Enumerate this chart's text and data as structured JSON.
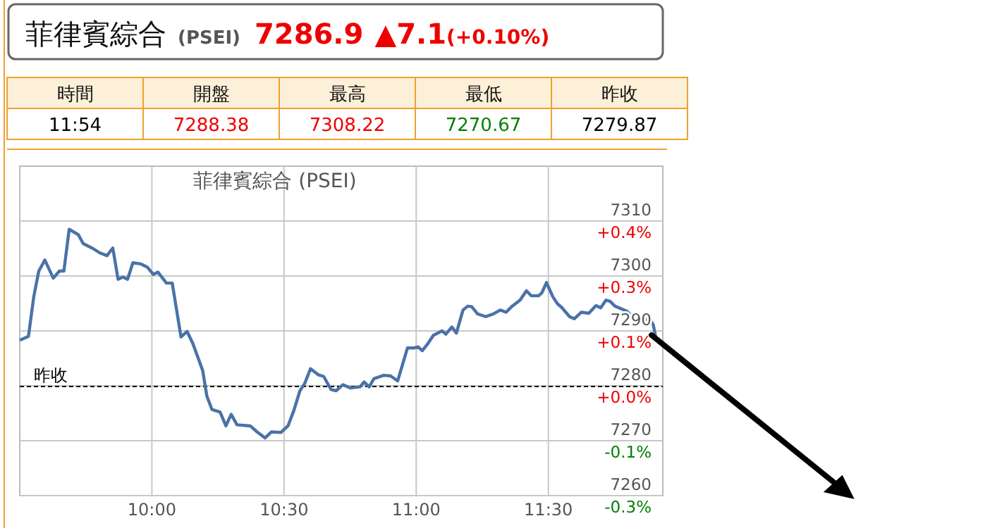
{
  "chart_data": [
    {
      "type": "other",
      "title": "菲律賓綜合",
      "subtitle": "(PSEI)",
      "annotations": [
        "7286.9",
        "▲7.1",
        "(+0.10%)"
      ],
      "colors": [
        "#ee0000",
        "#ee0000",
        "#ee0000"
      ]
    },
    {
      "type": "other",
      "annotations": [
        "時間",
        "開盤",
        "最高",
        "最低",
        "昨收",
        "11:54",
        "7288.38",
        "7308.22",
        "7270.67",
        "7279.87"
      ],
      "colors": [
        "#111111",
        "#111111",
        "#111111",
        "#111111",
        "#111111",
        "#000000",
        "#ee0000",
        "#ee0000",
        "#008000",
        "#000000"
      ]
    },
    {
      "type": "line",
      "title": "菲律賓綜合 (PSEI)",
      "xlim": [
        9.5,
        11.933
      ],
      "ylim": [
        7260,
        7320
      ],
      "y2lim": [
        -0.273,
        0.551
      ],
      "xticks": [
        {
          "value": 10,
          "label": "10:00"
        },
        {
          "value": 10.5,
          "label": "10:30"
        },
        {
          "value": 11,
          "label": "11:00"
        },
        {
          "value": 11.5,
          "label": "11:30"
        }
      ],
      "yticks": [
        7260,
        7270,
        7280,
        7290,
        7300,
        7310
      ],
      "y2ticks": [
        {
          "value": -0.273,
          "label": "-0.3%"
        },
        {
          "value": -0.136,
          "label": "-0.1%"
        },
        {
          "value": 0.002,
          "label": "+0.0%"
        },
        {
          "value": 0.139,
          "label": "+0.1%"
        },
        {
          "value": 0.277,
          "label": "+0.3%"
        },
        {
          "value": 0.414,
          "label": "+0.4%"
        }
      ],
      "grid": true,
      "line_style": "solid",
      "ref_lines": [
        {
          "axis": "y",
          "value": 7279.87,
          "label": "昨收",
          "color": "#000000",
          "line_style": "dashed"
        }
      ],
      "series": [
        {
          "color": "#4a72a8",
          "x": [
            9.505,
            9.533,
            9.553,
            9.572,
            9.595,
            9.627,
            9.65,
            9.667,
            9.687,
            9.722,
            9.74,
            9.777,
            9.803,
            9.83,
            9.852,
            9.872,
            9.89,
            9.908,
            9.928,
            9.957,
            9.983,
            10.005,
            10.023,
            10.055,
            10.077,
            10.11,
            10.133,
            10.155,
            10.192,
            10.208,
            10.227,
            10.258,
            10.28,
            10.3,
            10.322,
            10.372,
            10.398,
            10.428,
            10.452,
            10.488,
            10.515,
            10.537,
            10.56,
            10.578,
            10.6,
            10.63,
            10.65,
            10.678,
            10.697,
            10.723,
            10.75,
            10.787,
            10.803,
            10.822,
            10.84,
            10.877,
            10.903,
            10.93,
            10.967,
            10.993,
            11.007,
            11.023,
            11.043,
            11.065,
            11.098,
            11.112,
            11.135,
            11.152,
            11.177,
            11.195,
            11.21,
            11.232,
            11.263,
            11.292,
            11.318,
            11.34,
            11.363,
            11.393,
            11.417,
            11.435,
            11.463,
            11.475,
            11.493,
            11.517,
            11.535,
            11.55,
            11.58,
            11.598,
            11.625,
            11.653,
            11.68,
            11.698,
            11.718,
            11.733,
            11.752,
            11.797,
            11.823,
            11.85,
            11.882,
            11.897,
            11.908
          ],
          "values": [
            7288.4,
            7289.0,
            7296.2,
            7300.9,
            7302.9,
            7299.6,
            7300.9,
            7300.9,
            7308.5,
            7307.5,
            7305.9,
            7305.0,
            7304.2,
            7303.7,
            7305.1,
            7299.4,
            7299.8,
            7299.4,
            7302.4,
            7302.2,
            7301.6,
            7300.3,
            7300.7,
            7298.7,
            7298.7,
            7288.9,
            7289.9,
            7287.7,
            7282.8,
            7278.1,
            7275.7,
            7275.2,
            7272.7,
            7274.8,
            7272.9,
            7272.7,
            7271.6,
            7270.5,
            7271.6,
            7271.5,
            7272.7,
            7275.5,
            7279.1,
            7280.4,
            7283.1,
            7282.0,
            7281.7,
            7279.3,
            7279.1,
            7280.2,
            7279.6,
            7279.8,
            7280.7,
            7279.8,
            7281.3,
            7281.9,
            7281.8,
            7280.9,
            7286.9,
            7286.9,
            7287.1,
            7286.4,
            7287.6,
            7289.2,
            7290.0,
            7289.4,
            7290.7,
            7289.6,
            7293.8,
            7294.5,
            7294.4,
            7293.1,
            7292.6,
            7293.1,
            7293.8,
            7293.4,
            7294.5,
            7295.6,
            7297.3,
            7296.4,
            7296.4,
            7296.9,
            7298.8,
            7296.2,
            7294.9,
            7294.3,
            7292.6,
            7292.2,
            7293.4,
            7293.2,
            7294.6,
            7294.2,
            7295.6,
            7295.4,
            7294.5,
            7293.6,
            7292.3,
            7291.7,
            7292.3,
            7291.1,
            7288.4
          ]
        }
      ]
    }
  ]
}
